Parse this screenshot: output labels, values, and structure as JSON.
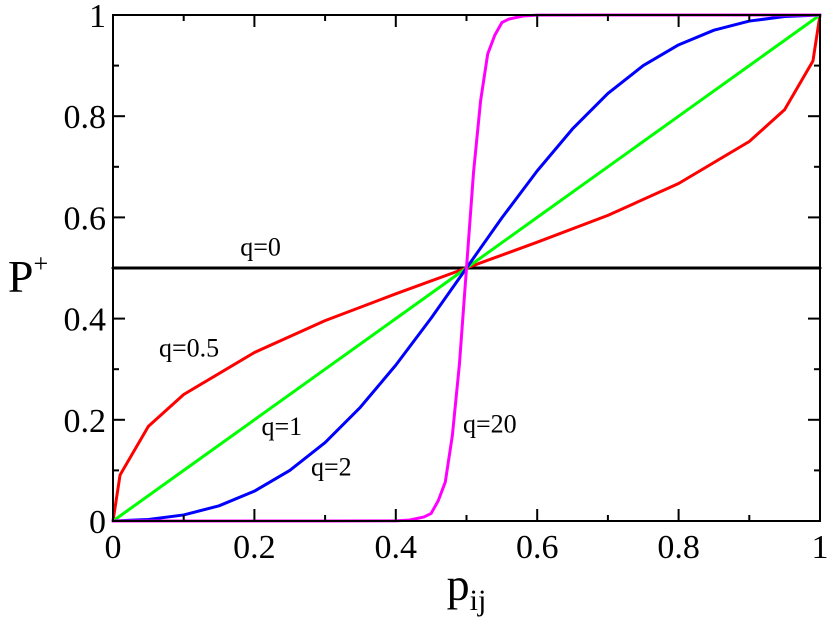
{
  "chart_data": {
    "type": "line",
    "title": "",
    "xlabel": {
      "main": "p",
      "sub": "ij"
    },
    "ylabel": {
      "main": "P",
      "sup": "+"
    },
    "xlim": [
      0,
      1
    ],
    "ylim": [
      0,
      1
    ],
    "x_ticks": [
      "0",
      "0.2",
      "0.4",
      "0.6",
      "0.8",
      "1"
    ],
    "y_ticks": [
      "0",
      "0.2",
      "0.4",
      "0.6",
      "0.8",
      "1"
    ],
    "grid": false,
    "legend": "none",
    "series": [
      {
        "color": "#000000",
        "q": 0,
        "x": [
          0,
          0.1,
          0.2,
          0.3,
          0.4,
          0.5,
          0.6,
          0.7,
          0.8,
          0.9,
          1
        ],
        "y": [
          0.5,
          0.5,
          0.5,
          0.5,
          0.5,
          0.5,
          0.5,
          0.5,
          0.5,
          0.5,
          0.5
        ]
      },
      {
        "color": "#ff0000",
        "q": 0.5,
        "x": [
          0,
          0.01,
          0.05,
          0.1,
          0.2,
          0.3,
          0.4,
          0.5,
          0.6,
          0.7,
          0.8,
          0.9,
          0.95,
          0.99,
          1
        ],
        "y": [
          0,
          0.091,
          0.187,
          0.25,
          0.333,
          0.396,
          0.449,
          0.5,
          0.551,
          0.604,
          0.667,
          0.75,
          0.813,
          0.909,
          1
        ]
      },
      {
        "color": "#00ff00",
        "q": 1,
        "x": [
          0,
          0.1,
          0.2,
          0.3,
          0.4,
          0.5,
          0.6,
          0.7,
          0.8,
          0.9,
          1
        ],
        "y": [
          0,
          0.1,
          0.2,
          0.3,
          0.4,
          0.5,
          0.6,
          0.7,
          0.8,
          0.9,
          1
        ]
      },
      {
        "color": "#0000ff",
        "q": 2,
        "x": [
          0,
          0.05,
          0.1,
          0.15,
          0.2,
          0.25,
          0.3,
          0.35,
          0.4,
          0.45,
          0.5,
          0.55,
          0.6,
          0.65,
          0.7,
          0.75,
          0.8,
          0.85,
          0.9,
          0.95,
          1
        ],
        "y": [
          0,
          0.003,
          0.012,
          0.03,
          0.059,
          0.1,
          0.155,
          0.225,
          0.308,
          0.401,
          0.5,
          0.599,
          0.692,
          0.775,
          0.845,
          0.9,
          0.941,
          0.97,
          0.988,
          0.997,
          1
        ]
      },
      {
        "color": "#ff00ff",
        "q": 20,
        "x": [
          0,
          0.3,
          0.4,
          0.42,
          0.44,
          0.45,
          0.46,
          0.47,
          0.48,
          0.49,
          0.5,
          0.51,
          0.52,
          0.53,
          0.54,
          0.55,
          0.56,
          0.58,
          0.6,
          0.7,
          1
        ],
        "y": [
          0,
          0,
          0.0003,
          0.002,
          0.008,
          0.015,
          0.04,
          0.077,
          0.169,
          0.31,
          0.5,
          0.69,
          0.831,
          0.923,
          0.96,
          0.985,
          0.992,
          0.998,
          0.9997,
          1,
          1
        ]
      }
    ],
    "annotations": [
      {
        "text": "q=0",
        "x": 0.18,
        "y": 0.525
      },
      {
        "text": "q=0.5",
        "x": 0.065,
        "y": 0.325
      },
      {
        "text": "q=1",
        "x": 0.21,
        "y": 0.17
      },
      {
        "text": "q=2",
        "x": 0.28,
        "y": 0.09
      },
      {
        "text": "q=20",
        "x": 0.495,
        "y": 0.175
      }
    ]
  }
}
